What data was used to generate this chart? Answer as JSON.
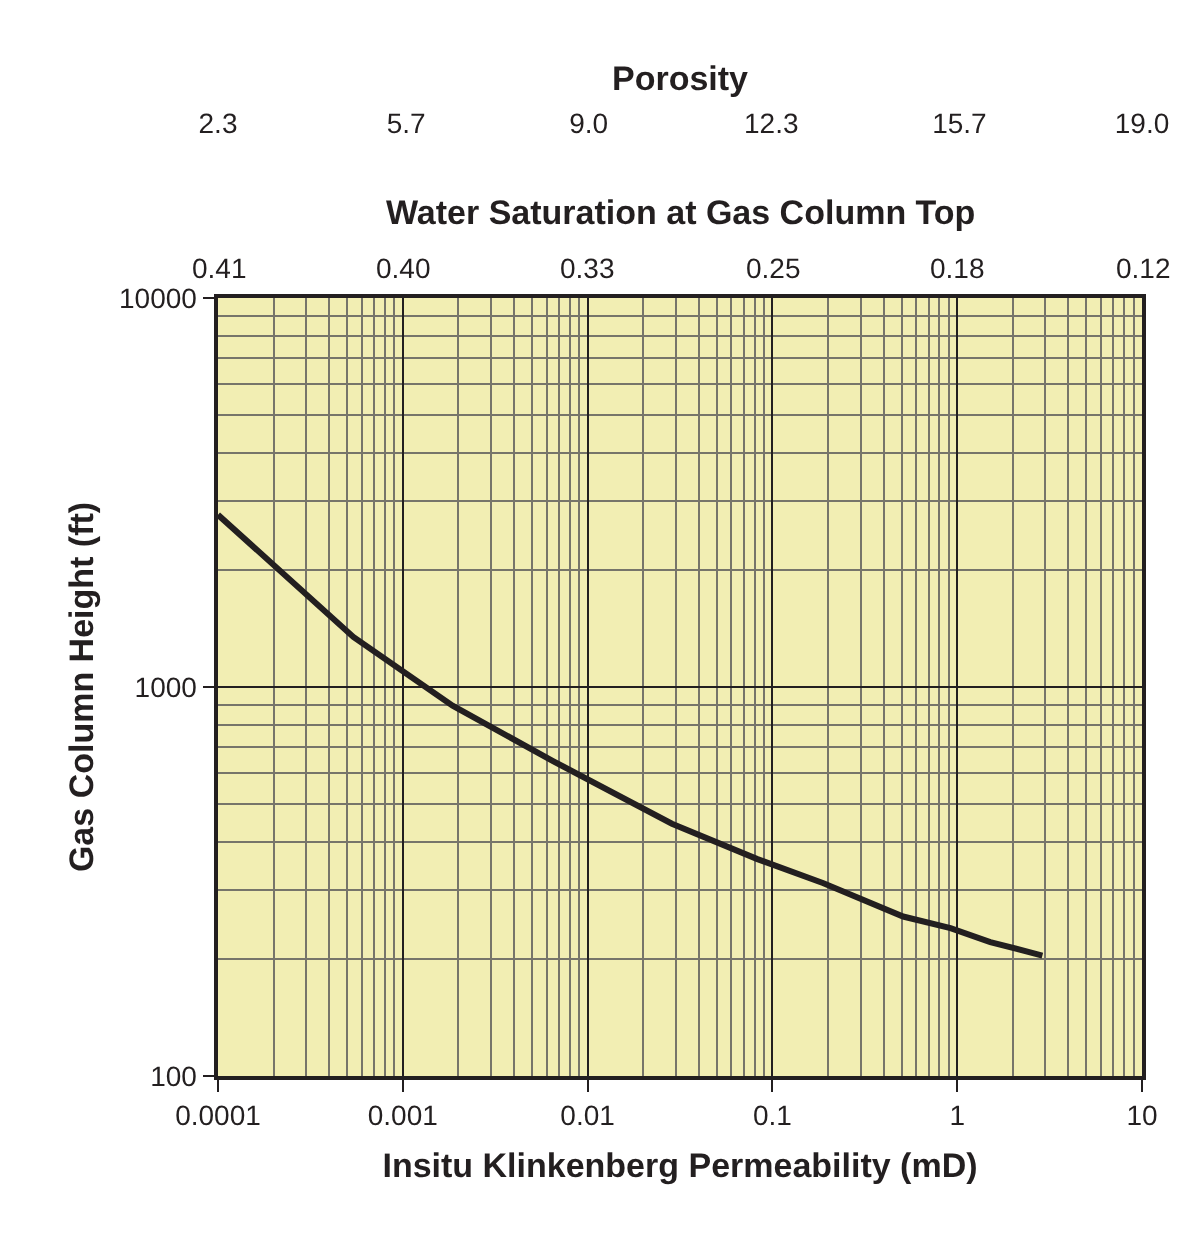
{
  "chart_data": {
    "type": "line",
    "xlabel": "Insitu Klinkenberg Permeability (mD)",
    "ylabel": "Gas Column Height (ft)",
    "x2label": "Porosity",
    "annotations": [
      "Water Saturation at Gas Column Top",
      "0.41",
      "0.40",
      "0.33",
      "0.25",
      "0.18",
      "0.12"
    ],
    "log": "xy",
    "grid": true,
    "marker": "none",
    "line_style": "solid",
    "xlim": [
      0.0001,
      10
    ],
    "xticks": [
      0.0001,
      0.001,
      0.01,
      0.1,
      1,
      10
    ],
    "x2lim": [
      2.3,
      19.0
    ],
    "x2ticks": [
      2.3,
      5.7,
      {
        "value": 9.0,
        "label": "9.0"
      },
      12.3,
      15.7,
      {
        "value": 19.0,
        "label": "19.0"
      }
    ],
    "ylim": [
      100,
      10000
    ],
    "yticks": [
      100,
      1000,
      10000
    ],
    "series": [
      {
        "color": "#231f20",
        "x": [
          0.0001,
          0.00054,
          0.00186,
          0.0065,
          0.0286,
          0.083,
          0.189,
          0.51,
          0.92,
          1.51,
          2.89
        ],
        "values": [
          2770,
          1345,
          895,
          645,
          445,
          361,
          313,
          257,
          240,
          221,
          204
        ]
      }
    ]
  }
}
